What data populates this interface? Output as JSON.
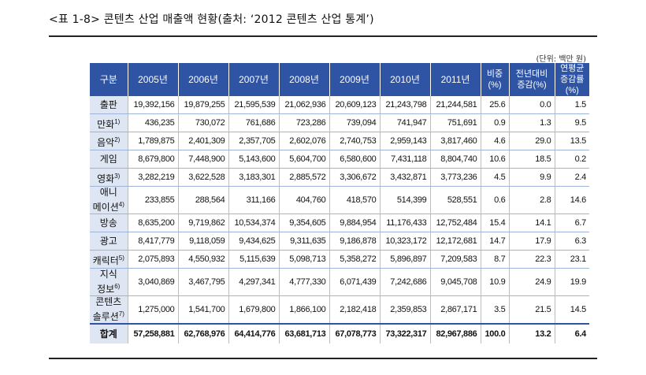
{
  "caption": "<표 1-8> 콘텐츠 산업 매출액 현황(출처: ‘2012 콘텐츠 산업 통계’)",
  "unit": "(단위: 백만 원)",
  "headers": {
    "category": "구분",
    "years": [
      "2005년",
      "2006년",
      "2007년",
      "2008년",
      "2009년",
      "2010년",
      "2011년"
    ],
    "share": [
      "비중",
      "(%)"
    ],
    "yoy": [
      "전년대비",
      "증감(%)"
    ],
    "cagr": [
      "연평균",
      "증감률(%)"
    ]
  },
  "rows": [
    {
      "label": [
        "출판"
      ],
      "note": "",
      "values": [
        "19,392,156",
        "19,879,255",
        "21,595,539",
        "21,062,936",
        "20,609,123",
        "21,243,798",
        "21,244,581",
        "25.6",
        "0.0",
        "1.5"
      ]
    },
    {
      "label": [
        "만화"
      ],
      "note": "1)",
      "values": [
        "436,235",
        "730,072",
        "761,686",
        "723,286",
        "739,094",
        "741,947",
        "751,691",
        "0.9",
        "1.3",
        "9.5"
      ]
    },
    {
      "label": [
        "음악"
      ],
      "note": "2)",
      "values": [
        "1,789,875",
        "2,401,309",
        "2,357,705",
        "2,602,076",
        "2,740,753",
        "2,959,143",
        "3,817,460",
        "4.6",
        "29.0",
        "13.5"
      ]
    },
    {
      "label": [
        "게임"
      ],
      "note": "",
      "values": [
        "8,679,800",
        "7,448,900",
        "5,143,600",
        "5,604,700",
        "6,580,600",
        "7,431,118",
        "8,804,740",
        "10.6",
        "18.5",
        "0.2"
      ]
    },
    {
      "label": [
        "영화"
      ],
      "note": "3)",
      "values": [
        "3,282,219",
        "3,622,528",
        "3,183,301",
        "2,885,572",
        "3,306,672",
        "3,432,871",
        "3,773,236",
        "4.5",
        "9.9",
        "2.4"
      ]
    },
    {
      "label": [
        "애니",
        "메이션"
      ],
      "note": "4)",
      "values": [
        "233,855",
        "288,564",
        "311,166",
        "404,760",
        "418,570",
        "514,399",
        "528,551",
        "0.6",
        "2.8",
        "14.6"
      ]
    },
    {
      "label": [
        "방송"
      ],
      "note": "",
      "values": [
        "8,635,200",
        "9,719,862",
        "10,534,374",
        "9,354,605",
        "9,884,954",
        "11,176,433",
        "12,752,484",
        "15.4",
        "14.1",
        "6.7"
      ]
    },
    {
      "label": [
        "광고"
      ],
      "note": "",
      "values": [
        "8,417,779",
        "9,118,059",
        "9,434,625",
        "9,311,635",
        "9,186,878",
        "10,323,172",
        "12,172,681",
        "14.7",
        "17.9",
        "6.3"
      ]
    },
    {
      "label": [
        "캐릭터"
      ],
      "note": "5)",
      "values": [
        "2,075,893",
        "4,550,932",
        "5,115,639",
        "5,098,713",
        "5,358,272",
        "5,896,897",
        "7,209,583",
        "8.7",
        "22.3",
        "23.1"
      ]
    },
    {
      "label": [
        "지식",
        "정보"
      ],
      "note": "6)",
      "values": [
        "3,040,869",
        "3,467,795",
        "4,297,341",
        "4,777,330",
        "6,071,439",
        "7,242,686",
        "9,045,708",
        "10.9",
        "24.9",
        "19.9"
      ]
    },
    {
      "label": [
        "콘텐츠",
        "솔루션"
      ],
      "note": "7)",
      "values": [
        "1,275,000",
        "1,541,700",
        "1,679,800",
        "1,866,100",
        "2,182,418",
        "2,359,853",
        "2,867,171",
        "3.5",
        "21.5",
        "14.5"
      ]
    }
  ],
  "total": {
    "label": "합계",
    "values": [
      "57,258,881",
      "62,768,976",
      "64,414,776",
      "63,681,713",
      "67,078,773",
      "73,322,317",
      "82,967,886",
      "100.0",
      "13.2",
      "6.4"
    ]
  }
}
